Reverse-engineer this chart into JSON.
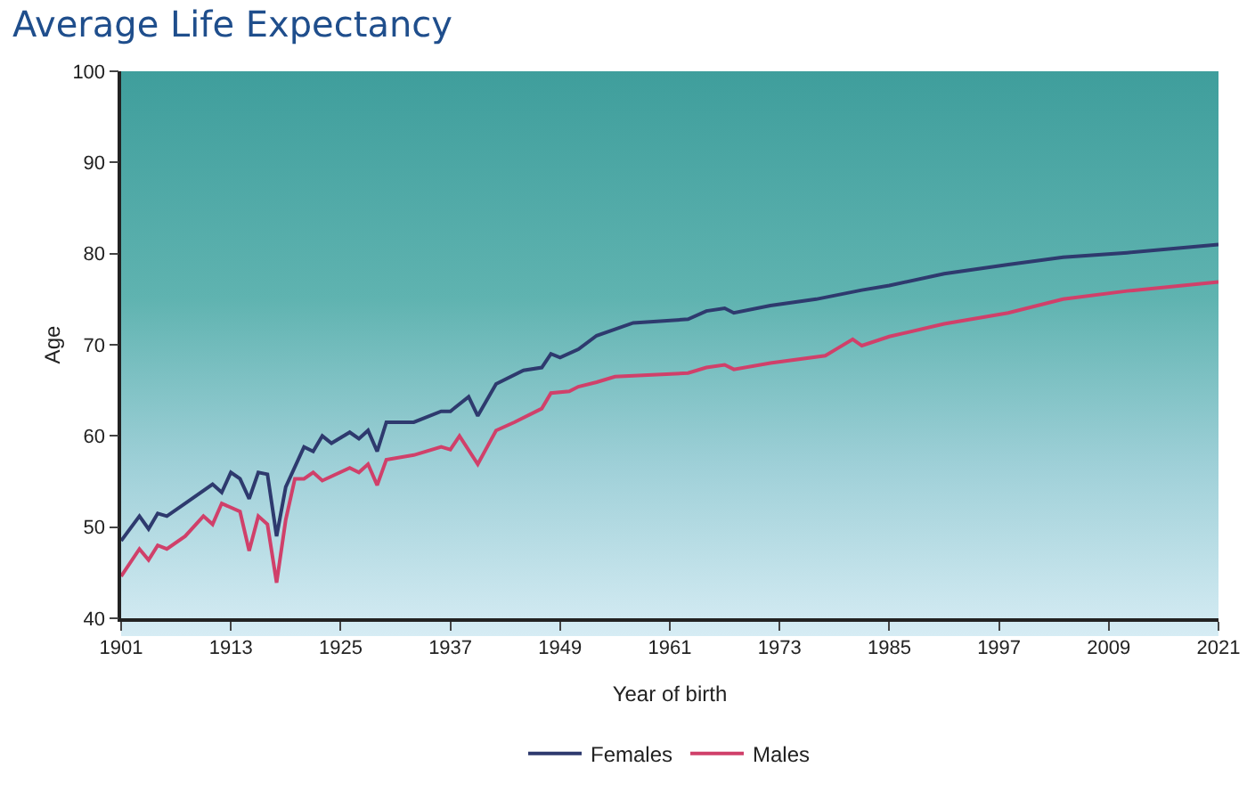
{
  "chart_data": {
    "type": "line",
    "title": "Average Life Expectancy",
    "xlabel": "Year of birth",
    "ylabel": "Age",
    "xlim": [
      1901,
      2021
    ],
    "xticks": [
      1901,
      1913,
      1925,
      1937,
      1949,
      1961,
      1973,
      1985,
      1997,
      2009,
      2021
    ],
    "ylim": [
      40,
      100
    ],
    "yticks": [
      40,
      50,
      60,
      70,
      80,
      90,
      100
    ],
    "grid": false,
    "legend": "bottom",
    "line_style": "solid",
    "series": [
      {
        "name": "Females",
        "color": "#2e3a6e",
        "x": [
          1901,
          1903,
          1904,
          1905,
          1906,
          1908,
          1911,
          1912,
          1913,
          1914,
          1915,
          1916,
          1917,
          1918,
          1919,
          1921,
          1922,
          1923,
          1924,
          1926,
          1927,
          1928,
          1929,
          1930,
          1933,
          1936,
          1937,
          1939,
          1940,
          1942,
          1945,
          1947,
          1948,
          1949,
          1951,
          1953,
          1955,
          1957,
          1963,
          1965,
          1967,
          1968,
          1972,
          1977,
          1982,
          1985,
          1991,
          1998,
          2004,
          2011,
          2021
        ],
        "values": [
          48.5,
          51.2,
          49.8,
          51.5,
          51.2,
          52.6,
          54.7,
          53.8,
          56,
          55.3,
          53.1,
          56,
          55.8,
          49,
          54.4,
          58.8,
          58.3,
          60,
          59.2,
          60.4,
          59.7,
          60.6,
          58.3,
          61.5,
          61.5,
          62.7,
          62.7,
          64.3,
          62.2,
          65.7,
          67.2,
          67.5,
          69,
          68.6,
          69.5,
          71,
          71.7,
          72.4,
          72.8,
          73.7,
          74,
          73.5,
          74.3,
          75,
          76,
          76.5,
          77.8,
          78.8,
          79.6,
          80.1,
          81
        ]
      },
      {
        "name": "Males",
        "color": "#d0406a",
        "x": [
          1901,
          1903,
          1904,
          1905,
          1906,
          1908,
          1910,
          1911,
          1912,
          1914,
          1915,
          1916,
          1917,
          1918,
          1919,
          1920,
          1921,
          1922,
          1923,
          1926,
          1927,
          1928,
          1929,
          1930,
          1933,
          1936,
          1937,
          1938,
          1940,
          1942,
          1944,
          1947,
          1948,
          1950,
          1951,
          1953,
          1955,
          1963,
          1965,
          1967,
          1968,
          1972,
          1978,
          1979,
          1981,
          1982,
          1985,
          1991,
          1998,
          2004,
          2011,
          2021
        ],
        "values": [
          44.6,
          47.6,
          46.4,
          48,
          47.6,
          49,
          51.2,
          50.3,
          52.6,
          51.7,
          47.4,
          51.2,
          50.3,
          43.9,
          50.8,
          55.3,
          55.3,
          56,
          55.1,
          56.5,
          56,
          56.9,
          54.6,
          57.4,
          57.9,
          58.8,
          58.5,
          60,
          56.9,
          60.6,
          61.5,
          63,
          64.7,
          64.9,
          65.4,
          65.9,
          66.5,
          66.9,
          67.5,
          67.8,
          67.3,
          68,
          68.8,
          69.4,
          70.6,
          69.9,
          70.9,
          72.3,
          73.5,
          75,
          75.9,
          76.9
        ]
      }
    ]
  }
}
